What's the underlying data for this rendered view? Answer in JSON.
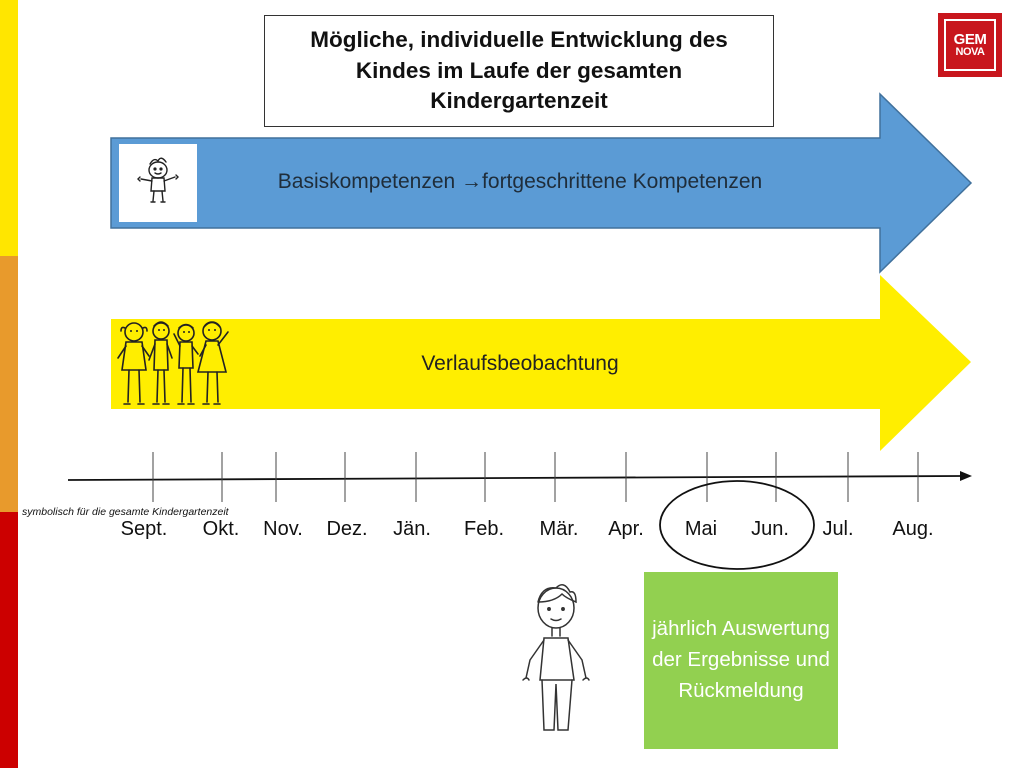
{
  "title": "Mögliche, individuelle Entwicklung des Kindes im Laufe der gesamten Kindergartenzeit",
  "logo": {
    "line1": "GEM",
    "line2": "NOVA",
    "color": "#c8161d"
  },
  "arrows": {
    "blue": {
      "label": "Basiskompetenzen →fortgeschrittene Kompetenzen",
      "color": "#5b9bd5"
    },
    "yellow": {
      "label": "Verlaufsbeobachtung",
      "color": "#ffee00"
    }
  },
  "timeline": {
    "caption": "symbolisch für die gesamte Kindergartenzeit",
    "months": [
      "Sept.",
      "Okt.",
      "Nov.",
      "Dez.",
      "Jän.",
      "Feb.",
      "Mär.",
      "Apr.",
      "Mai",
      "Jun.",
      "Jul.",
      "Aug."
    ],
    "highlighted_months": [
      "Mai",
      "Jun."
    ]
  },
  "result_box": {
    "text": "jährlich Auswertung der Ergebnisse und Rückmeldung",
    "color": "#92d050"
  },
  "side_colors": [
    "#ffe600",
    "#e89a2c",
    "#cc0000"
  ]
}
